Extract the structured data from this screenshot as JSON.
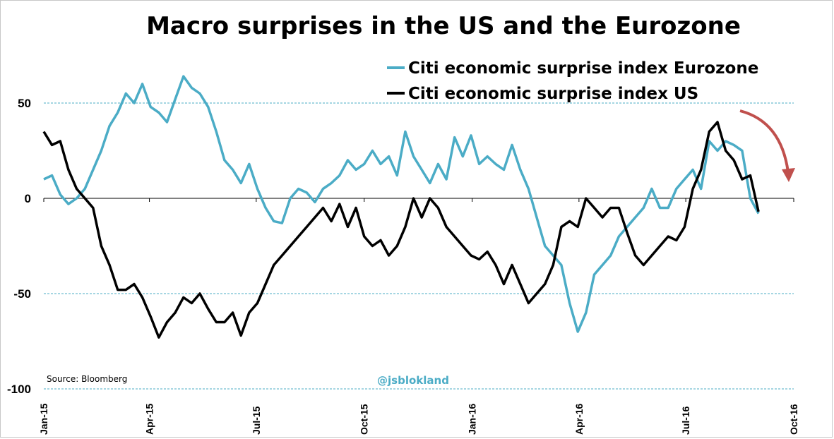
{
  "chart_data": {
    "type": "line",
    "title": "Macro surprises in the US and the Eurozone",
    "xlabel": "",
    "ylabel": "",
    "xlim": [
      "2015-01-01",
      "2016-10-01"
    ],
    "ylim": [
      -100,
      50
    ],
    "y_ticks": [
      50,
      0,
      -50,
      -100
    ],
    "x_ticks": [
      {
        "date": "2015-01-01",
        "label": "Jan-15"
      },
      {
        "date": "2015-04-01",
        "label": "Apr-15"
      },
      {
        "date": "2015-07-01",
        "label": "Jul-15"
      },
      {
        "date": "2015-10-01",
        "label": "Oct-15"
      },
      {
        "date": "2016-01-01",
        "label": "Jan-16"
      },
      {
        "date": "2016-04-01",
        "label": "Apr-16"
      },
      {
        "date": "2016-07-01",
        "label": "Jul-16"
      },
      {
        "date": "2016-10-01",
        "label": "Oct-16"
      }
    ],
    "grid": "dashed horizontal lines at 50, -50, -100",
    "legend_position": "top-right",
    "series": [
      {
        "name": "Citi economic surprise index Eurozone",
        "color": "#4bacc6",
        "points": [
          [
            "2015-01-01",
            10
          ],
          [
            "2015-01-08",
            12
          ],
          [
            "2015-01-15",
            2
          ],
          [
            "2015-01-22",
            -3
          ],
          [
            "2015-01-29",
            0
          ],
          [
            "2015-02-05",
            5
          ],
          [
            "2015-02-12",
            15
          ],
          [
            "2015-02-19",
            25
          ],
          [
            "2015-02-26",
            38
          ],
          [
            "2015-03-05",
            45
          ],
          [
            "2015-03-12",
            55
          ],
          [
            "2015-03-19",
            50
          ],
          [
            "2015-03-26",
            60
          ],
          [
            "2015-04-02",
            48
          ],
          [
            "2015-04-09",
            45
          ],
          [
            "2015-04-16",
            40
          ],
          [
            "2015-04-23",
            52
          ],
          [
            "2015-04-30",
            64
          ],
          [
            "2015-05-07",
            58
          ],
          [
            "2015-05-14",
            55
          ],
          [
            "2015-05-21",
            48
          ],
          [
            "2015-05-28",
            35
          ],
          [
            "2015-06-04",
            20
          ],
          [
            "2015-06-11",
            15
          ],
          [
            "2015-06-18",
            8
          ],
          [
            "2015-06-25",
            18
          ],
          [
            "2015-07-02",
            5
          ],
          [
            "2015-07-09",
            -5
          ],
          [
            "2015-07-16",
            -12
          ],
          [
            "2015-07-23",
            -13
          ],
          [
            "2015-07-30",
            0
          ],
          [
            "2015-08-06",
            5
          ],
          [
            "2015-08-13",
            3
          ],
          [
            "2015-08-20",
            -2
          ],
          [
            "2015-08-27",
            5
          ],
          [
            "2015-09-03",
            8
          ],
          [
            "2015-09-10",
            12
          ],
          [
            "2015-09-17",
            20
          ],
          [
            "2015-09-24",
            15
          ],
          [
            "2015-10-01",
            18
          ],
          [
            "2015-10-08",
            25
          ],
          [
            "2015-10-15",
            18
          ],
          [
            "2015-10-22",
            22
          ],
          [
            "2015-10-29",
            12
          ],
          [
            "2015-11-05",
            35
          ],
          [
            "2015-11-12",
            22
          ],
          [
            "2015-11-19",
            15
          ],
          [
            "2015-11-26",
            8
          ],
          [
            "2015-12-03",
            18
          ],
          [
            "2015-12-10",
            10
          ],
          [
            "2015-12-17",
            32
          ],
          [
            "2015-12-24",
            22
          ],
          [
            "2015-12-31",
            33
          ],
          [
            "2016-01-07",
            18
          ],
          [
            "2016-01-14",
            22
          ],
          [
            "2016-01-21",
            18
          ],
          [
            "2016-01-28",
            15
          ],
          [
            "2016-02-04",
            28
          ],
          [
            "2016-02-11",
            15
          ],
          [
            "2016-02-18",
            5
          ],
          [
            "2016-02-25",
            -10
          ],
          [
            "2016-03-03",
            -25
          ],
          [
            "2016-03-10",
            -30
          ],
          [
            "2016-03-17",
            -35
          ],
          [
            "2016-03-24",
            -55
          ],
          [
            "2016-03-31",
            -70
          ],
          [
            "2016-04-07",
            -60
          ],
          [
            "2016-04-14",
            -40
          ],
          [
            "2016-04-21",
            -35
          ],
          [
            "2016-04-28",
            -30
          ],
          [
            "2016-05-05",
            -20
          ],
          [
            "2016-05-12",
            -15
          ],
          [
            "2016-05-19",
            -10
          ],
          [
            "2016-05-26",
            -5
          ],
          [
            "2016-06-02",
            5
          ],
          [
            "2016-06-09",
            -5
          ],
          [
            "2016-06-16",
            -5
          ],
          [
            "2016-06-23",
            5
          ],
          [
            "2016-06-30",
            10
          ],
          [
            "2016-07-07",
            15
          ],
          [
            "2016-07-14",
            5
          ],
          [
            "2016-07-21",
            30
          ],
          [
            "2016-07-28",
            25
          ],
          [
            "2016-08-04",
            30
          ],
          [
            "2016-08-11",
            28
          ],
          [
            "2016-08-18",
            25
          ],
          [
            "2016-08-25",
            0
          ],
          [
            "2016-09-01",
            -8
          ]
        ]
      },
      {
        "name": "Citi economic surprise index US",
        "color": "#000000",
        "points": [
          [
            "2015-01-01",
            35
          ],
          [
            "2015-01-08",
            28
          ],
          [
            "2015-01-15",
            30
          ],
          [
            "2015-01-22",
            15
          ],
          [
            "2015-01-29",
            5
          ],
          [
            "2015-02-05",
            0
          ],
          [
            "2015-02-12",
            -5
          ],
          [
            "2015-02-19",
            -25
          ],
          [
            "2015-02-26",
            -35
          ],
          [
            "2015-03-05",
            -48
          ],
          [
            "2015-03-12",
            -48
          ],
          [
            "2015-03-19",
            -45
          ],
          [
            "2015-03-26",
            -52
          ],
          [
            "2015-04-02",
            -62
          ],
          [
            "2015-04-09",
            -73
          ],
          [
            "2015-04-16",
            -65
          ],
          [
            "2015-04-23",
            -60
          ],
          [
            "2015-04-30",
            -52
          ],
          [
            "2015-05-07",
            -55
          ],
          [
            "2015-05-14",
            -50
          ],
          [
            "2015-05-21",
            -58
          ],
          [
            "2015-05-28",
            -65
          ],
          [
            "2015-06-04",
            -65
          ],
          [
            "2015-06-11",
            -60
          ],
          [
            "2015-06-18",
            -72
          ],
          [
            "2015-06-25",
            -60
          ],
          [
            "2015-07-02",
            -55
          ],
          [
            "2015-07-09",
            -45
          ],
          [
            "2015-07-16",
            -35
          ],
          [
            "2015-07-23",
            -30
          ],
          [
            "2015-07-30",
            -25
          ],
          [
            "2015-08-06",
            -20
          ],
          [
            "2015-08-13",
            -15
          ],
          [
            "2015-08-20",
            -10
          ],
          [
            "2015-08-27",
            -5
          ],
          [
            "2015-09-03",
            -12
          ],
          [
            "2015-09-10",
            -3
          ],
          [
            "2015-09-17",
            -15
          ],
          [
            "2015-09-24",
            -5
          ],
          [
            "2015-10-01",
            -20
          ],
          [
            "2015-10-08",
            -25
          ],
          [
            "2015-10-15",
            -22
          ],
          [
            "2015-10-22",
            -30
          ],
          [
            "2015-10-29",
            -25
          ],
          [
            "2015-11-05",
            -15
          ],
          [
            "2015-11-12",
            0
          ],
          [
            "2015-11-19",
            -10
          ],
          [
            "2015-11-26",
            0
          ],
          [
            "2015-12-03",
            -5
          ],
          [
            "2015-12-10",
            -15
          ],
          [
            "2015-12-17",
            -20
          ],
          [
            "2015-12-24",
            -25
          ],
          [
            "2015-12-31",
            -30
          ],
          [
            "2016-01-07",
            -32
          ],
          [
            "2016-01-14",
            -28
          ],
          [
            "2016-01-21",
            -35
          ],
          [
            "2016-01-28",
            -45
          ],
          [
            "2016-02-04",
            -35
          ],
          [
            "2016-02-11",
            -45
          ],
          [
            "2016-02-18",
            -55
          ],
          [
            "2016-02-25",
            -50
          ],
          [
            "2016-03-03",
            -45
          ],
          [
            "2016-03-10",
            -35
          ],
          [
            "2016-03-17",
            -15
          ],
          [
            "2016-03-24",
            -12
          ],
          [
            "2016-03-31",
            -15
          ],
          [
            "2016-04-07",
            0
          ],
          [
            "2016-04-14",
            -5
          ],
          [
            "2016-04-21",
            -10
          ],
          [
            "2016-04-28",
            -5
          ],
          [
            "2016-05-05",
            -5
          ],
          [
            "2016-05-12",
            -18
          ],
          [
            "2016-05-19",
            -30
          ],
          [
            "2016-05-26",
            -35
          ],
          [
            "2016-06-02",
            -30
          ],
          [
            "2016-06-09",
            -25
          ],
          [
            "2016-06-16",
            -20
          ],
          [
            "2016-06-23",
            -22
          ],
          [
            "2016-06-30",
            -15
          ],
          [
            "2016-07-07",
            5
          ],
          [
            "2016-07-14",
            15
          ],
          [
            "2016-07-21",
            35
          ],
          [
            "2016-07-28",
            40
          ],
          [
            "2016-08-04",
            25
          ],
          [
            "2016-08-11",
            20
          ],
          [
            "2016-08-18",
            10
          ],
          [
            "2016-08-25",
            12
          ],
          [
            "2016-09-01",
            -7
          ]
        ]
      }
    ],
    "annotations": {
      "source": "Source: Bloomberg",
      "handle": "@jsblokland",
      "arrow_color": "#c0504d"
    }
  }
}
